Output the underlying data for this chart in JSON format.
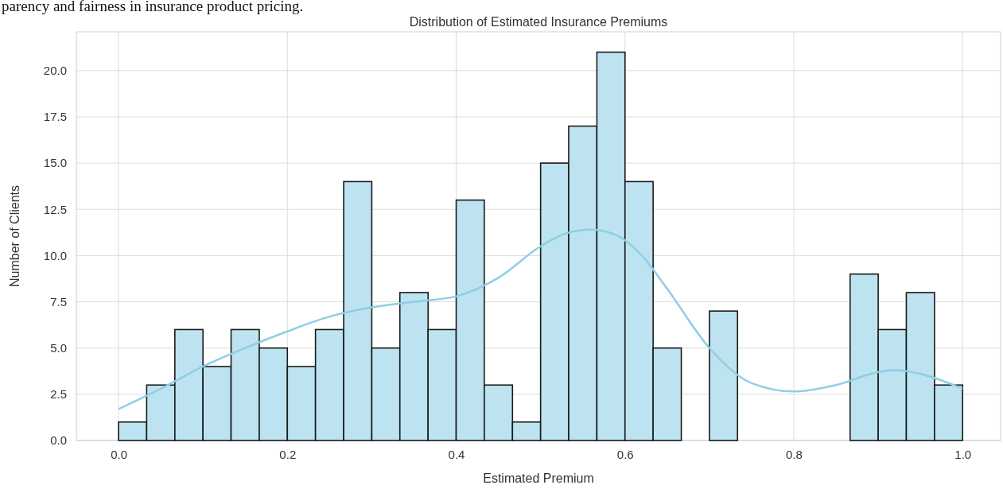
{
  "chart_data": {
    "type": "histogram",
    "title": "Distribution of Estimated Insurance Premiums",
    "xlabel": "Estimated Premium",
    "ylabel": "Number of Clients",
    "annotations": [
      "parency and fairness in insurance product pricing."
    ],
    "xlim": [
      -0.05,
      1.045
    ],
    "ylim": [
      0,
      22.1
    ],
    "xticks": [
      {
        "value": 0,
        "label": "0.0"
      },
      {
        "value": 0.2,
        "label": "0.2"
      },
      {
        "value": 0.4,
        "label": "0.4"
      },
      {
        "value": 0.6,
        "label": "0.6"
      },
      {
        "value": 0.8,
        "label": "0.8"
      },
      {
        "value": 1,
        "label": "1.0"
      }
    ],
    "yticks": [
      {
        "value": 0,
        "label": "0.0"
      },
      {
        "value": 2.5,
        "label": "2.5"
      },
      {
        "value": 5,
        "label": "5.0"
      },
      {
        "value": 7.5,
        "label": "7.5"
      },
      {
        "value": 10,
        "label": "10.0"
      },
      {
        "value": 12.5,
        "label": "12.5"
      },
      {
        "value": 15,
        "label": "15.0"
      },
      {
        "value": 17.5,
        "label": "17.5"
      },
      {
        "value": 20,
        "label": "20.0"
      }
    ],
    "grid": true,
    "series": [
      {
        "color": "#bde3f0",
        "bins": [
          0,
          0.0333,
          0.0667,
          0.1,
          0.1333,
          0.1667,
          0.2,
          0.2333,
          0.2667,
          0.3,
          0.3333,
          0.3667,
          0.4,
          0.4333,
          0.4667,
          0.5,
          0.5333,
          0.5667,
          0.6,
          0.6333,
          0.6667,
          0.7,
          0.7333,
          0.7667,
          0.8,
          0.8333,
          0.8667,
          0.9,
          0.9333,
          0.9667,
          1
        ],
        "values": [
          1,
          3,
          6,
          4,
          6,
          5,
          4,
          6,
          14,
          5,
          8,
          6,
          13,
          3,
          1,
          15,
          17,
          21,
          14,
          5,
          0,
          7,
          0,
          0,
          0,
          0,
          9,
          6,
          8,
          3
        ]
      },
      {
        "type": "line",
        "color": "#8ecfe3",
        "x": [
          0,
          0.05,
          0.1,
          0.15,
          0.2,
          0.25,
          0.3,
          0.35,
          0.4,
          0.45,
          0.5,
          0.53,
          0.56,
          0.59,
          0.62,
          0.65,
          0.7,
          0.75,
          0.8,
          0.85,
          0.9,
          0.92,
          0.95,
          1
        ],
        "values": [
          1.7,
          2.8,
          4.0,
          5.0,
          5.9,
          6.7,
          7.2,
          7.5,
          7.8,
          8.8,
          10.5,
          11.2,
          11.4,
          11.1,
          10.0,
          8.2,
          5.0,
          3.1,
          2.65,
          3.0,
          3.7,
          3.8,
          3.6,
          2.8
        ]
      }
    ]
  }
}
